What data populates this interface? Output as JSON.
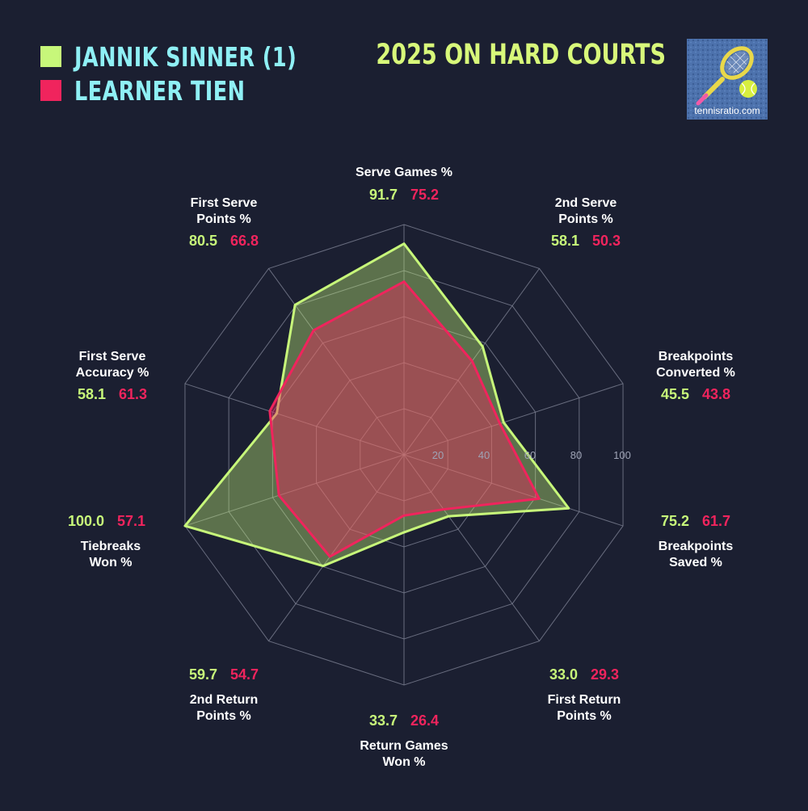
{
  "title": "2025 ON HARD COURTS",
  "logo": {
    "text": "tennisratio.com",
    "icon": "tennis-racket-ball-icon"
  },
  "chart_data": {
    "type": "radar",
    "r_ticks": [
      "20",
      "40",
      "60",
      "80",
      "100"
    ],
    "rmax": 100,
    "colors": {
      "p1": "#c7f77a",
      "p2": "#f0245d",
      "label": "#ffffff",
      "grid": "#7c8092"
    },
    "series": [
      {
        "name": "JANNIK SINNER (1)"
      },
      {
        "name": "LEARNER TIEN"
      }
    ],
    "axes": [
      {
        "l1": "Serve Games %",
        "l2": "",
        "v1": 91.7,
        "v2": 75.2,
        "d1": "91.7",
        "d2": "75.2"
      },
      {
        "l1": "2nd Serve",
        "l2": "Points %",
        "v1": 58.1,
        "v2": 50.3,
        "d1": "58.1",
        "d2": "50.3"
      },
      {
        "l1": "Breakpoints",
        "l2": "Converted %",
        "v1": 45.5,
        "v2": 43.8,
        "d1": "45.5",
        "d2": "43.8"
      },
      {
        "l1": "Breakpoints",
        "l2": "Saved %",
        "v1": 75.2,
        "v2": 61.7,
        "d1": "75.2",
        "d2": "61.7"
      },
      {
        "l1": "First Return",
        "l2": "Points %",
        "v1": 33.0,
        "v2": 29.3,
        "d1": "33.0",
        "d2": "29.3"
      },
      {
        "l1": "Return Games",
        "l2": "Won %",
        "v1": 33.7,
        "v2": 26.4,
        "d1": "33.7",
        "d2": "26.4"
      },
      {
        "l1": "2nd Return",
        "l2": "Points %",
        "v1": 59.7,
        "v2": 54.7,
        "d1": "59.7",
        "d2": "54.7"
      },
      {
        "l1": "Tiebreaks",
        "l2": "Won %",
        "v1": 100.0,
        "v2": 57.1,
        "d1": "100.0",
        "d2": "57.1"
      },
      {
        "l1": "First Serve",
        "l2": "Accuracy %",
        "v1": 58.1,
        "v2": 61.3,
        "d1": "58.1",
        "d2": "61.3"
      },
      {
        "l1": "First Serve",
        "l2": "Points %",
        "v1": 80.5,
        "v2": 66.8,
        "d1": "80.5",
        "d2": "66.8"
      }
    ]
  }
}
